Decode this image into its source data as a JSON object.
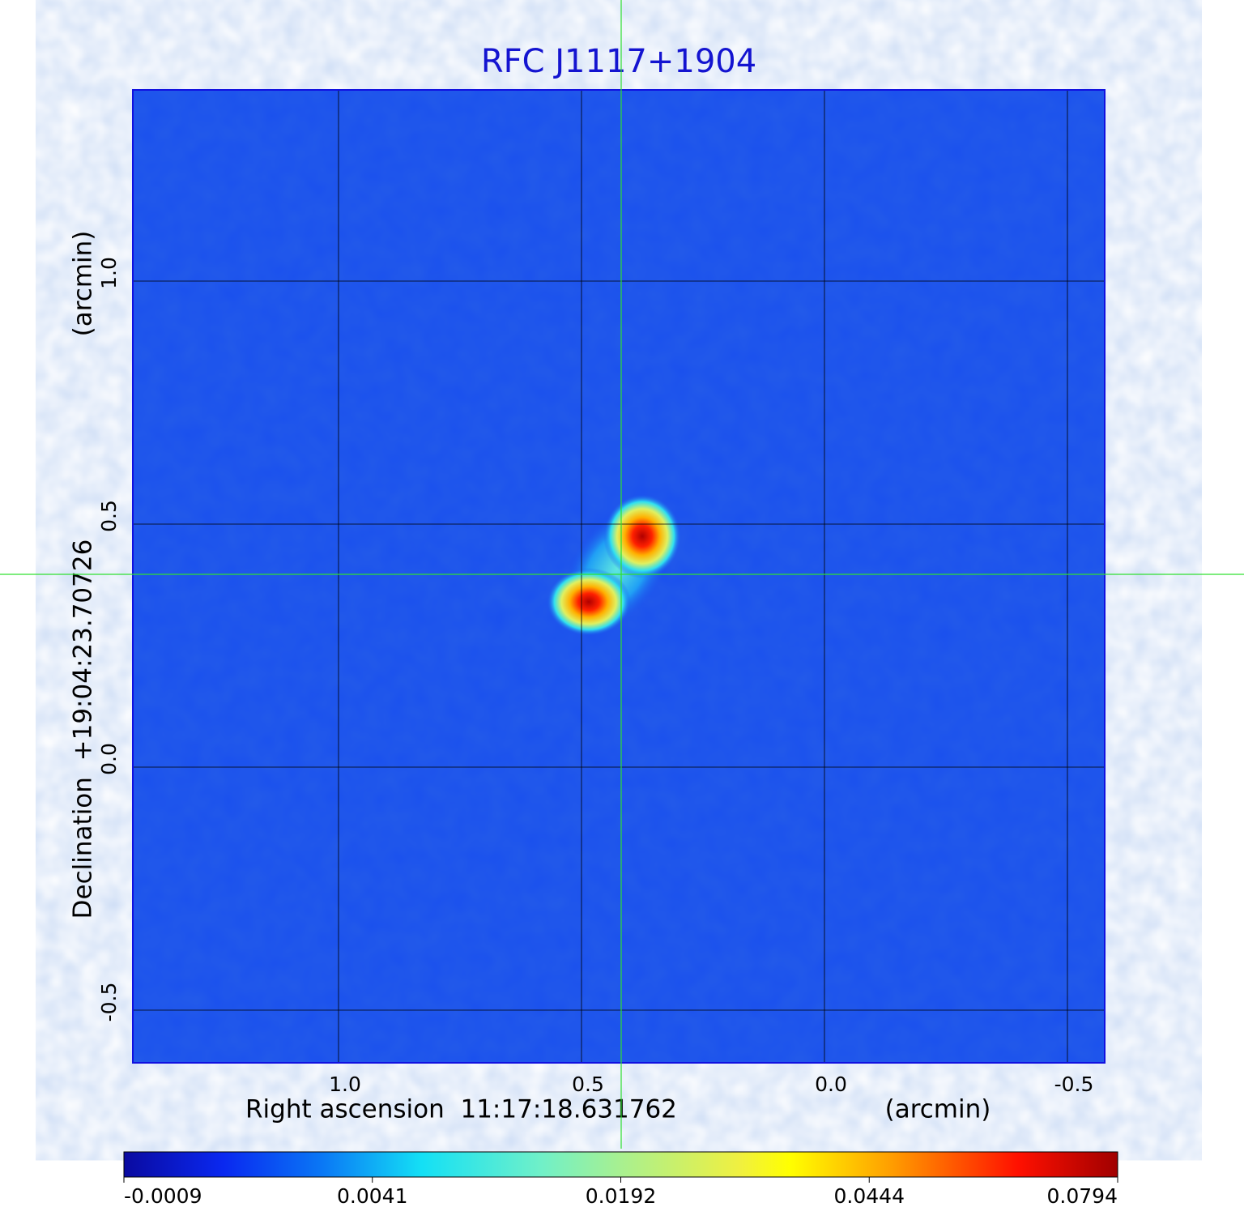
{
  "chart_data": {
    "type": "image",
    "title": "RFC J1117+1904",
    "xlabel": "Right ascension  11:17:18.631762",
    "xunit": "(arcmin)",
    "ylabel": "Declination  +19:04:23.70726",
    "yunit": "(arcmin)",
    "xlim": [
      1.4233,
      -0.5767
    ],
    "ylim": [
      -0.6083,
      1.3933
    ],
    "xticks": [
      {
        "value": 1,
        "label": "1.0"
      },
      0.5,
      {
        "value": 0,
        "label": "0.0"
      },
      -0.5
    ],
    "yticks": [
      -0.5,
      {
        "value": 0,
        "label": "0.0"
      },
      0.5,
      {
        "value": 1,
        "label": "1.0"
      }
    ],
    "grid": true,
    "colorbar": {
      "ticks": [
        -0.0009,
        0.0041,
        0.0192,
        0.0444,
        0.0794
      ]
    }
  }
}
